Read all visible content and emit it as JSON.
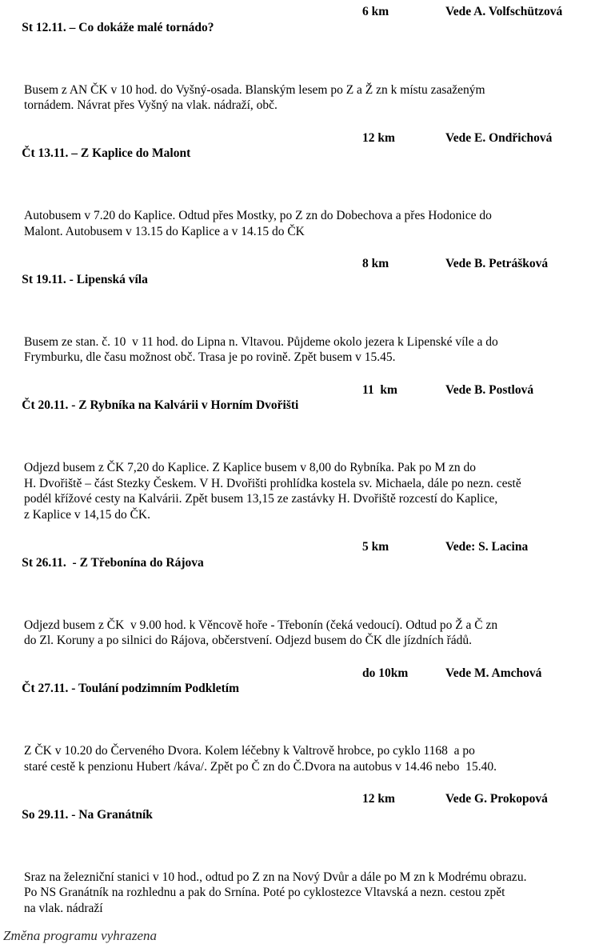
{
  "document": {
    "events": [
      {
        "title": "St 12.11. – Co dokáže malé tornádo?",
        "distance": "6 km",
        "leader": "Vede A. Volfschützová",
        "lines": [
          "Busem z AN ČK v 10 hod. do Vyšný-osada. Blanským lesem po Z a Ž zn k místu zasaženým",
          "tornádem. Návrat přes Vyšný na vlak. nádraží, obč."
        ]
      },
      {
        "title": "Čt 13.11. – Z Kaplice do Malont",
        "distance": "12 km",
        "leader": "Vede E. Ondřichová",
        "lines": [
          "Autobusem v 7.20 do Kaplice. Odtud přes Mostky, po Z zn do Dobechova a přes Hodonice do",
          "Malont. Autobusem v 13.15 do Kaplice a v 14.15 do ČK"
        ]
      },
      {
        "title": "St 19.11. - Lipenská víla",
        "distance": "8 km",
        "leader": "Vede B. Petrášková",
        "lines": [
          "Busem ze stan. č. 10  v 11 hod. do Lipna n. Vltavou. Půjdeme okolo jezera k Lipenské víle a do",
          "Frymburku, dle času možnost obč. Trasa je po rovině. Zpět busem v 15.45."
        ]
      },
      {
        "title": "Čt 20.11. - Z Rybníka na Kalvárii v Horním Dvořišti",
        "distance": "11  km",
        "leader": "Vede B. Postlová",
        "lines": [
          "Odjezd busem z ČK 7,20 do Kaplice. Z Kaplice busem v 8,00 do Rybníka. Pak po M zn do",
          "H. Dvořiště – část Stezky Českem. V H. Dvořišti prohlídka kostela sv. Michaela, dále po nezn. cestě",
          "podél křížové cesty na Kalvárii. Zpět busem 13,15 ze zastávky H. Dvořiště rozcestí do Kaplice,",
          "z Kaplice v 14,15 do ČK."
        ]
      },
      {
        "title": "St 26.11.  - Z Třebonína do Rájova",
        "distance": "5 km",
        "leader": "Vede: S. Lacina",
        "lines": [
          "Odjezd busem z ČK  v 9.00 hod. k Věncově hoře - Třebonín (čeká vedoucí). Odtud po Ž a Č zn",
          "do Zl. Koruny a po silnici do Rájova, občerstvení. Odjezd busem do ČK dle jízdních řádů."
        ]
      },
      {
        "title": "Čt 27.11. - Toulání podzimním Podkletím",
        "distance": "do 10km",
        "leader": "Vede M. Amchová",
        "lines": [
          "Z ČK v 10.20 do Červeného Dvora. Kolem léčebny k Valtrově hrobce, po cyklo 1168  a po",
          "staré cestě k penzionu Hubert /káva/. Zpět po Č zn do Č.Dvora na autobus v 14.46 nebo  15.40."
        ]
      },
      {
        "title": "So 29.11. - Na Granátník",
        "distance": "12 km",
        "leader": "Vede G. Prokopová",
        "lines": [
          "Sraz na železniční stanici v 10 hod., odtud po Z zn na Nový Dvůr a dále po M zn k Modrému obrazu.",
          "Po NS Granátník na rozhlednu a pak do Srnína. Poté po cyklostezce Vltavská a nezn. cestou zpět",
          "na vlak. nádraží"
        ]
      }
    ],
    "footer_note": "Změna programu vyhrazena",
    "text_color": "#000000"
  }
}
